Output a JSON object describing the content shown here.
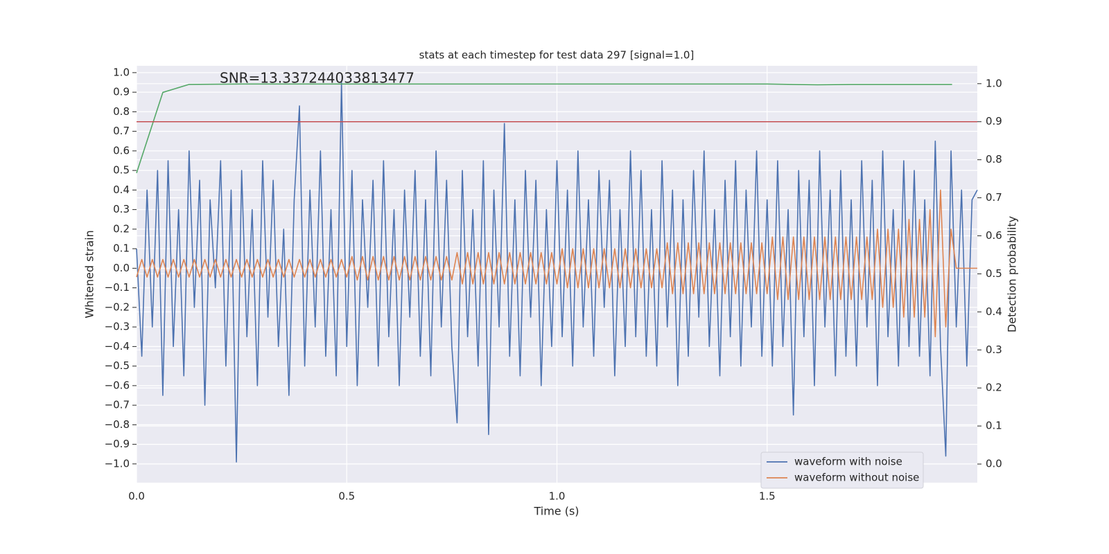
{
  "chart_data": {
    "type": "line",
    "title": "stats at each timestep for test data 297 [signal=1.0]",
    "annotation": "SNR=13.337244033813477",
    "xlabel": "Time (s)",
    "ylabel": "Whitened strain",
    "y2label": "Detection probability",
    "xlim": [
      0,
      2.0
    ],
    "ylim": [
      -1.096,
      1.035
    ],
    "y2lim": [
      -0.049,
      1.047
    ],
    "xticks": [
      {
        "value": 0,
        "label": "0.0"
      },
      0.5,
      {
        "value": 1,
        "label": "1.0"
      },
      1.5
    ],
    "yticks": [
      {
        "value": -1,
        "label": "−1.0"
      },
      {
        "value": -0.9,
        "label": "−0.9"
      },
      {
        "value": -0.8,
        "label": "−0.8"
      },
      {
        "value": -0.7,
        "label": "−0.7"
      },
      {
        "value": -0.6,
        "label": "−0.6"
      },
      {
        "value": -0.5,
        "label": "−0.5"
      },
      {
        "value": -0.4,
        "label": "−0.4"
      },
      {
        "value": -0.3,
        "label": "−0.3"
      },
      {
        "value": -0.2,
        "label": "−0.2"
      },
      {
        "value": -0.1,
        "label": "−0.1"
      },
      {
        "value": 0,
        "label": "0.0"
      },
      0.1,
      0.2,
      0.3,
      0.4,
      0.5,
      0.6,
      0.7,
      0.8,
      0.9,
      {
        "value": 1,
        "label": "1.0"
      }
    ],
    "y2ticks": [
      {
        "value": 0,
        "label": "0.0"
      },
      0.1,
      0.2,
      0.3,
      0.4,
      0.5,
      0.6,
      0.7,
      0.8,
      0.9,
      {
        "value": 1,
        "label": "1.0"
      }
    ],
    "grid": true,
    "legend": "lower right",
    "x": [
      0,
      0.0125,
      0.025,
      0.0375,
      0.05,
      0.0625,
      0.075,
      0.0875,
      0.1,
      0.1125,
      0.125,
      0.1375,
      0.15,
      0.1625,
      0.175,
      0.1875,
      0.2,
      0.2125,
      0.225,
      0.2375,
      0.25,
      0.2625,
      0.275,
      0.2875,
      0.3,
      0.3125,
      0.325,
      0.3375,
      0.35,
      0.3625,
      0.375,
      0.3875,
      0.4,
      0.4125,
      0.425,
      0.4375,
      0.45,
      0.4625,
      0.475,
      0.4875,
      0.5,
      0.5125,
      0.525,
      0.5375,
      0.55,
      0.5625,
      0.575,
      0.5875,
      0.6,
      0.6125,
      0.625,
      0.6375,
      0.65,
      0.6625,
      0.675,
      0.6875,
      0.7,
      0.7125,
      0.725,
      0.7375,
      0.75,
      0.7625,
      0.775,
      0.7875,
      0.8,
      0.8125,
      0.825,
      0.8375,
      0.85,
      0.8625,
      0.875,
      0.8875,
      0.9,
      0.9125,
      0.925,
      0.9375,
      0.95,
      0.9625,
      0.975,
      0.9875,
      1.0,
      1.0125,
      1.025,
      1.0375,
      1.05,
      1.0625,
      1.075,
      1.0875,
      1.1,
      1.1125,
      1.125,
      1.1375,
      1.15,
      1.1625,
      1.175,
      1.1875,
      1.2,
      1.2125,
      1.225,
      1.2375,
      1.25,
      1.2625,
      1.275,
      1.2875,
      1.3,
      1.3125,
      1.325,
      1.3375,
      1.35,
      1.3625,
      1.375,
      1.3875,
      1.4,
      1.4125,
      1.425,
      1.4375,
      1.45,
      1.4625,
      1.475,
      1.4875,
      1.5,
      1.5125,
      1.525,
      1.5375,
      1.55,
      1.5625,
      1.575,
      1.5875,
      1.6,
      1.6125,
      1.625,
      1.6375,
      1.65,
      1.6625,
      1.675,
      1.6875,
      1.7,
      1.7125,
      1.725,
      1.7375,
      1.75,
      1.7625,
      1.775,
      1.7875,
      1.8,
      1.8125,
      1.825,
      1.8375,
      1.85,
      1.8625,
      1.875,
      1.8875,
      1.9,
      1.9125,
      1.925,
      1.9375,
      1.95,
      1.9625,
      1.975,
      1.9875,
      2.0
    ],
    "series": [
      {
        "name": "waveform with noise",
        "color": "#4c72b0",
        "values": [
          0.1,
          -0.45,
          0.4,
          -0.3,
          0.5,
          -0.65,
          0.55,
          -0.4,
          0.3,
          -0.55,
          0.6,
          -0.2,
          0.45,
          -0.7,
          0.35,
          -0.1,
          0.55,
          -0.5,
          0.4,
          -0.99,
          0.5,
          -0.35,
          0.3,
          -0.6,
          0.55,
          -0.25,
          0.45,
          -0.4,
          0.2,
          -0.65,
          0.35,
          0.83,
          -0.5,
          0.4,
          -0.3,
          0.6,
          -0.45,
          0.3,
          -0.55,
          0.95,
          -0.4,
          0.5,
          -0.6,
          0.35,
          -0.2,
          0.45,
          -0.5,
          0.55,
          -0.35,
          0.3,
          -0.6,
          0.4,
          -0.25,
          0.5,
          -0.45,
          0.35,
          -0.55,
          0.6,
          -0.3,
          0.45,
          -0.4,
          -0.79,
          0.5,
          -0.35,
          0.3,
          -0.5,
          0.55,
          -0.85,
          0.4,
          -0.3,
          0.74,
          -0.45,
          0.35,
          -0.55,
          0.5,
          -0.25,
          0.45,
          -0.6,
          0.3,
          -0.4,
          0.55,
          -0.35,
          0.4,
          -0.5,
          0.6,
          -0.3,
          0.35,
          -0.45,
          0.5,
          -0.2,
          0.45,
          -0.55,
          0.3,
          -0.4,
          0.6,
          -0.35,
          0.5,
          -0.45,
          0.3,
          -0.5,
          0.55,
          -0.3,
          0.4,
          -0.6,
          0.35,
          -0.45,
          0.5,
          -0.25,
          0.6,
          -0.4,
          0.3,
          -0.55,
          0.45,
          -0.35,
          0.55,
          -0.5,
          0.4,
          -0.3,
          0.6,
          -0.45,
          0.35,
          -0.5,
          0.55,
          -0.4,
          0.3,
          -0.75,
          0.5,
          -0.35,
          0.45,
          -0.6,
          0.6,
          -0.3,
          0.4,
          -0.55,
          0.5,
          -0.45,
          0.35,
          -0.5,
          0.55,
          -0.3,
          0.45,
          -0.6,
          0.6,
          -0.35,
          0.3,
          -0.5,
          0.55,
          -0.4,
          0.5,
          -0.45,
          0.35,
          -0.55,
          0.65,
          -0.4,
          -0.96,
          0.6,
          -0.3,
          0.4,
          -0.5,
          0.35,
          0.4
        ]
      },
      {
        "name": "waveform without noise",
        "color": "#dd8452",
        "values": [
          -0.045,
          0.045,
          -0.045,
          0.045,
          -0.045,
          0.045,
          -0.045,
          0.045,
          -0.045,
          0.045,
          -0.045,
          0.045,
          -0.045,
          0.045,
          -0.045,
          0.045,
          -0.045,
          0.045,
          -0.045,
          0.045,
          -0.045,
          0.045,
          -0.045,
          0.045,
          -0.045,
          0.045,
          -0.045,
          0.045,
          -0.045,
          0.045,
          -0.045,
          0.045,
          -0.045,
          0.045,
          -0.045,
          0.045,
          -0.045,
          0.045,
          -0.045,
          0.045,
          -0.045,
          0.06,
          -0.06,
          0.06,
          -0.06,
          0.06,
          -0.06,
          0.06,
          -0.06,
          0.06,
          -0.06,
          0.06,
          -0.06,
          0.06,
          -0.06,
          0.06,
          -0.06,
          0.06,
          -0.06,
          0.06,
          -0.06,
          0.08,
          -0.08,
          0.08,
          -0.08,
          0.08,
          -0.08,
          0.08,
          -0.08,
          0.08,
          -0.08,
          0.08,
          -0.08,
          0.08,
          -0.08,
          0.08,
          -0.08,
          0.08,
          -0.08,
          0.08,
          -0.08,
          0.1,
          -0.1,
          0.1,
          -0.1,
          0.1,
          -0.1,
          0.1,
          -0.1,
          0.1,
          -0.1,
          0.1,
          -0.1,
          0.1,
          -0.1,
          0.1,
          -0.1,
          0.1,
          -0.1,
          0.1,
          -0.1,
          0.13,
          -0.13,
          0.13,
          -0.13,
          0.13,
          -0.13,
          0.13,
          -0.13,
          0.13,
          -0.13,
          0.13,
          -0.13,
          0.13,
          -0.13,
          0.13,
          -0.13,
          0.13,
          -0.13,
          0.13,
          -0.13,
          0.16,
          -0.16,
          0.16,
          -0.16,
          0.16,
          -0.16,
          0.16,
          -0.16,
          0.16,
          -0.16,
          0.16,
          -0.16,
          0.16,
          -0.16,
          0.16,
          -0.16,
          0.16,
          -0.16,
          0.16,
          -0.16,
          0.2,
          -0.2,
          0.2,
          -0.2,
          0.2,
          -0.25,
          0.25,
          -0.25,
          0.25,
          -0.25,
          0.3,
          -0.35,
          0.4,
          -0.3,
          0.2,
          0,
          0,
          0,
          0,
          0
        ]
      },
      {
        "color": "#55a868",
        "axis": "y2",
        "x": [
          0,
          0.0625,
          0.125,
          0.25,
          0.5,
          1.0,
          1.5,
          1.62,
          1.7,
          1.94
        ],
        "values": [
          0.765,
          0.977,
          0.998,
          0.999,
          0.999,
          0.999,
          0.999,
          0.997,
          0.998,
          0.998
        ]
      }
    ],
    "threshold": {
      "value": 0.9,
      "color": "#c44e52",
      "axis": "y2"
    }
  }
}
